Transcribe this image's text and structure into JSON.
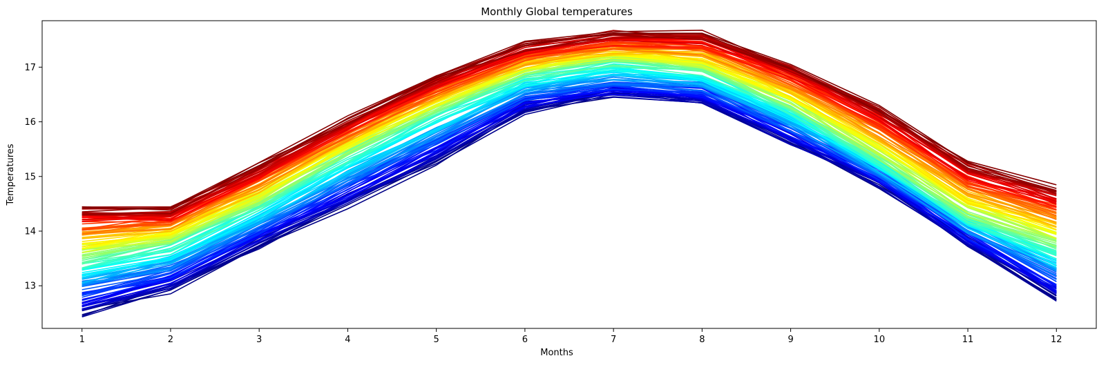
{
  "chart_data": {
    "type": "line",
    "title": "Monthly Global temperatures",
    "xlabel": "Months",
    "ylabel": "Temperatures",
    "x": [
      1,
      2,
      3,
      4,
      5,
      6,
      7,
      8,
      9,
      10,
      11,
      12
    ],
    "xticks": [
      "1",
      "2",
      "3",
      "4",
      "5",
      "6",
      "7",
      "8",
      "9",
      "10",
      "11",
      "12"
    ],
    "yticks": [
      "13",
      "14",
      "15",
      "16",
      "17"
    ],
    "xlim": [
      0.55,
      12.45
    ],
    "ylim": [
      12.22,
      17.85
    ],
    "grid": false,
    "legend": "none",
    "colormap": "jet",
    "num_series": 150,
    "series_outlines": {
      "coldest": [
        12.47,
        12.92,
        13.73,
        14.48,
        15.27,
        16.2,
        16.45,
        16.35,
        15.6,
        14.85,
        13.75,
        12.74
      ],
      "warm_median": [
        13.55,
        13.8,
        14.55,
        15.45,
        16.25,
        16.9,
        17.15,
        17.0,
        16.3,
        15.35,
        14.3,
        13.75
      ],
      "warmest": [
        14.42,
        14.42,
        15.2,
        16.05,
        16.8,
        17.4,
        17.62,
        17.62,
        17.05,
        16.3,
        15.25,
        14.78
      ]
    },
    "colors": {
      "axis": "#000000",
      "background": "#ffffff"
    }
  }
}
